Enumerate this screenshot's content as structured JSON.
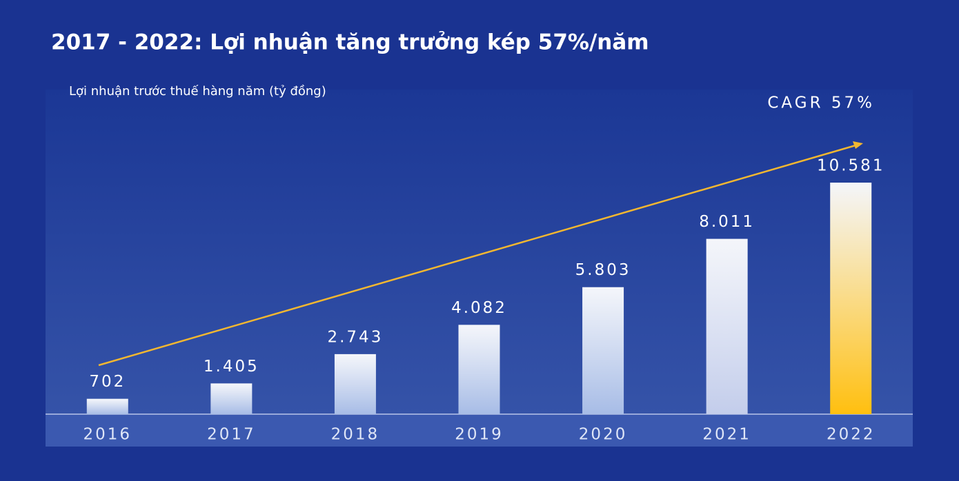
{
  "chart_data": {
    "type": "bar",
    "title": "2017 - 2022: Lợi nhuận tăng trưởng kép 57%/năm",
    "subtitle": "Lợi nhuận trước thuế hàng năm (tỷ đồng)",
    "annotation": "CAGR 57%",
    "categories": [
      "2016",
      "2017",
      "2018",
      "2019",
      "2020",
      "2021",
      "2022"
    ],
    "values": [
      702,
      1405,
      2743,
      4082,
      5803,
      8011,
      10581
    ],
    "value_labels": [
      "702",
      "1.405",
      "2.743",
      "4.082",
      "5.803",
      "8.011",
      "10.581"
    ],
    "colors": [
      "#a7bce6",
      "#a7bce6",
      "#a7bce6",
      "#a7bce6",
      "#a7bce6",
      "#c3cdeb",
      "#ffbf0f"
    ]
  }
}
